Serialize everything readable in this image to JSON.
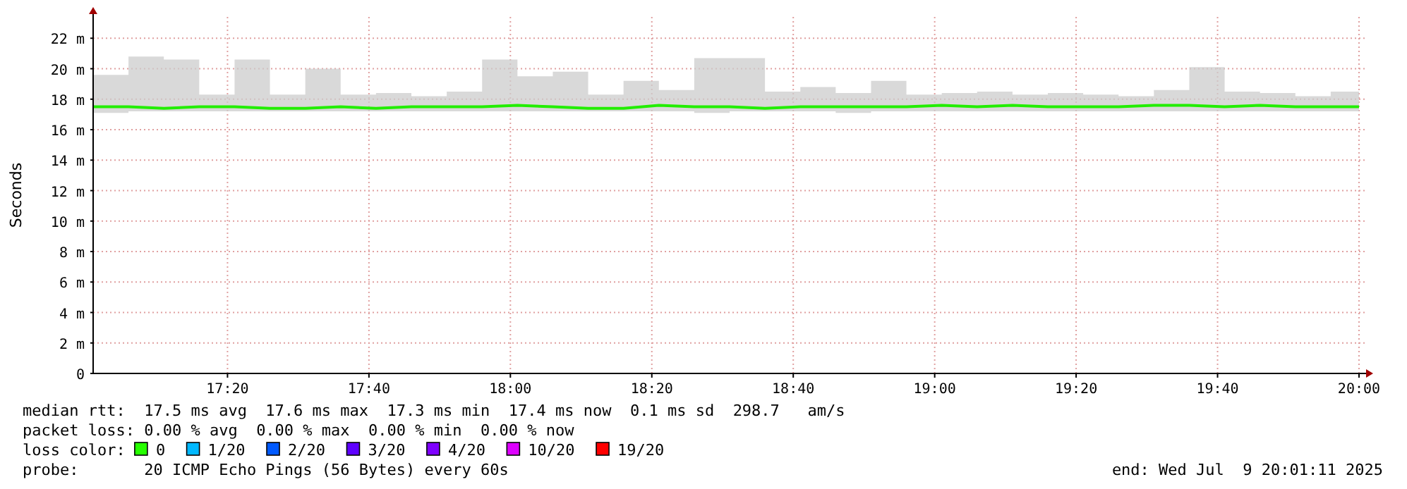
{
  "chart_data": {
    "type": "line",
    "ylabel": "Seconds",
    "x": [
      "2025-07-09T17:01",
      "2025-07-09T17:06",
      "2025-07-09T17:11",
      "2025-07-09T17:16",
      "2025-07-09T17:21",
      "2025-07-09T17:26",
      "2025-07-09T17:31",
      "2025-07-09T17:36",
      "2025-07-09T17:41",
      "2025-07-09T17:46",
      "2025-07-09T17:51",
      "2025-07-09T17:56",
      "2025-07-09T18:01",
      "2025-07-09T18:06",
      "2025-07-09T18:11",
      "2025-07-09T18:16",
      "2025-07-09T18:21",
      "2025-07-09T18:26",
      "2025-07-09T18:31",
      "2025-07-09T18:36",
      "2025-07-09T18:41",
      "2025-07-09T18:46",
      "2025-07-09T18:51",
      "2025-07-09T18:56",
      "2025-07-09T19:01",
      "2025-07-09T19:06",
      "2025-07-09T19:11",
      "2025-07-09T19:16",
      "2025-07-09T19:21",
      "2025-07-09T19:26",
      "2025-07-09T19:31",
      "2025-07-09T19:36",
      "2025-07-09T19:41",
      "2025-07-09T19:46",
      "2025-07-09T19:51",
      "2025-07-09T19:56",
      "2025-07-09T20:00"
    ],
    "series": [
      {
        "color": "#22ee00",
        "values": [
          17.5,
          17.5,
          17.4,
          17.5,
          17.5,
          17.4,
          17.4,
          17.5,
          17.4,
          17.5,
          17.5,
          17.5,
          17.6,
          17.5,
          17.4,
          17.4,
          17.6,
          17.5,
          17.5,
          17.4,
          17.5,
          17.5,
          17.5,
          17.5,
          17.6,
          17.5,
          17.6,
          17.5,
          17.5,
          17.5,
          17.6,
          17.6,
          17.5,
          17.6,
          17.5,
          17.5,
          17.5
        ],
        "lower": [
          17.1,
          17.2,
          17.2,
          17.2,
          17.2,
          17.2,
          17.2,
          17.2,
          17.2,
          17.2,
          17.2,
          17.2,
          17.2,
          17.2,
          17.2,
          17.2,
          17.2,
          17.1,
          17.2,
          17.2,
          17.2,
          17.1,
          17.2,
          17.2,
          17.2,
          17.2,
          17.2,
          17.2,
          17.2,
          17.2,
          17.2,
          17.2,
          17.2,
          17.2,
          17.2,
          17.2,
          17.2
        ],
        "upper": [
          19.6,
          20.8,
          20.6,
          18.3,
          20.6,
          18.3,
          20.0,
          18.3,
          18.4,
          18.2,
          18.5,
          20.6,
          19.5,
          19.8,
          18.3,
          19.2,
          18.6,
          20.7,
          20.7,
          18.5,
          18.8,
          18.4,
          19.2,
          18.3,
          18.4,
          18.5,
          18.3,
          18.4,
          18.3,
          18.2,
          18.6,
          20.1,
          18.5,
          18.4,
          18.2,
          18.5,
          18.2
        ]
      }
    ],
    "xlim": [
      "2025-07-09T17:01",
      "2025-07-09T20:01"
    ],
    "xticks": [
      {
        "value": "2025-07-09T17:20",
        "label": "17:20"
      },
      {
        "value": "2025-07-09T17:40",
        "label": "17:40"
      },
      {
        "value": "2025-07-09T18:00",
        "label": "18:00"
      },
      {
        "value": "2025-07-09T18:20",
        "label": "18:20"
      },
      {
        "value": "2025-07-09T18:40",
        "label": "18:40"
      },
      {
        "value": "2025-07-09T19:00",
        "label": "19:00"
      },
      {
        "value": "2025-07-09T19:20",
        "label": "19:20"
      },
      {
        "value": "2025-07-09T19:40",
        "label": "19:40"
      },
      {
        "value": "2025-07-09T20:00",
        "label": "20:00"
      }
    ],
    "ylim": [
      0,
      23.4
    ],
    "yticks": [
      0,
      {
        "value": 2,
        "label": "2 m"
      },
      {
        "value": 4,
        "label": "4 m"
      },
      {
        "value": 6,
        "label": "6 m"
      },
      {
        "value": 8,
        "label": "8 m"
      },
      {
        "value": 10,
        "label": "10 m"
      },
      {
        "value": 12,
        "label": "12 m"
      },
      {
        "value": 14,
        "label": "14 m"
      },
      {
        "value": 16,
        "label": "16 m"
      },
      {
        "value": 18,
        "label": "18 m"
      },
      {
        "value": 20,
        "label": "20 m"
      },
      {
        "value": 22,
        "label": "22 m"
      }
    ],
    "grid": true,
    "line_style": "solid",
    "marker": "none",
    "annotations": [
      "median rtt:  17.5 ms avg  17.6 ms max  17.3 ms min  17.4 ms now  0.1 ms sd  298.7   am/s",
      "packet loss: 0.00 % avg  0.00 % max  0.00 % min  0.00 % now",
      "loss color:",
      "0",
      "1/20",
      "2/20",
      "3/20",
      "4/20",
      "10/20",
      "19/20",
      "probe:       20 ICMP Echo Pings (56 Bytes) every 60s",
      "end: Wed Jul  9 20:01:11 2025"
    ]
  }
}
